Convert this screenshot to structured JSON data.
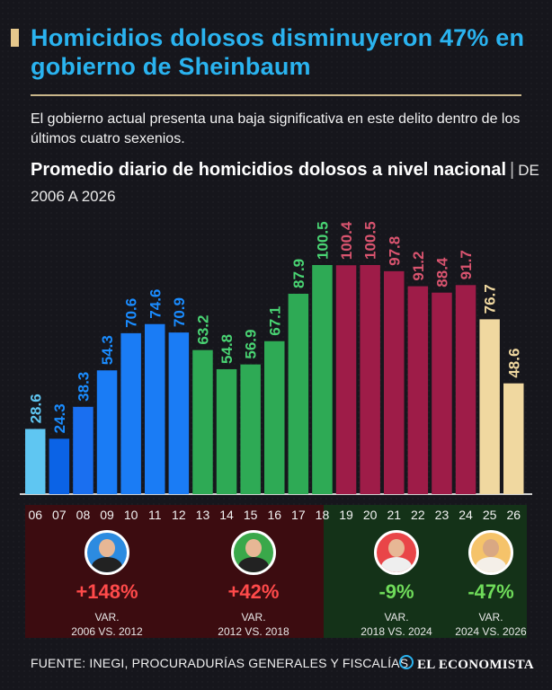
{
  "header": {
    "title": "Homicidios dolosos disminuyeron 47% en gobierno de Sheinbaum",
    "subtitle": "El gobierno actual presenta una baja significativa en este delito dentro de los últimos cuatro sexenios.",
    "chart_title": "Promedio diario de homicidios dolosos a nivel nacional",
    "chart_title_range": "DE 2006 A 2026"
  },
  "chart_data": {
    "type": "bar",
    "title": "Promedio diario de homicidios dolosos a nivel nacional",
    "subtitle": "DE 2006 A 2026",
    "categories": [
      "06",
      "07",
      "08",
      "09",
      "10",
      "11",
      "12",
      "13",
      "14",
      "15",
      "16",
      "17",
      "18",
      "19",
      "20",
      "21",
      "22",
      "23",
      "24",
      "25",
      "26"
    ],
    "values": [
      28.6,
      24.3,
      38.3,
      54.3,
      70.6,
      74.6,
      70.9,
      63.2,
      54.8,
      56.9,
      67.1,
      87.9,
      100.5,
      100.4,
      100.5,
      97.8,
      91.2,
      88.4,
      91.7,
      76.7,
      48.6
    ],
    "value_labels": [
      "28.6",
      "24.3",
      "38.3",
      "54.3",
      "70.6",
      "74.6",
      "70.9",
      "63.2",
      "54.8",
      "56.9",
      "67.1",
      "87.9",
      "100.5",
      "100.4",
      "100.5",
      "97.8",
      "91.2",
      "88.4",
      "91.7",
      "76.7",
      "48.6"
    ],
    "bar_colors": [
      "#5fc6f2",
      "#0b63e6",
      "#1a6ff0",
      "#1a7cf5",
      "#1a7cf5",
      "#1a7cf5",
      "#1a7cf5",
      "#2eaa55",
      "#2eaa55",
      "#2eaa55",
      "#2eaa55",
      "#2eaa55",
      "#2eaa55",
      "#9e1c48",
      "#9e1c48",
      "#9e1c48",
      "#9e1c48",
      "#9e1c48",
      "#9e1c48",
      "#f0d8a0",
      "#f0d8a0"
    ],
    "label_colors": [
      "#5fc6f2",
      "#1a8cff",
      "#1a8cff",
      "#1a8cff",
      "#1a8cff",
      "#1a8cff",
      "#1a8cff",
      "#49d473",
      "#49d473",
      "#49d473",
      "#49d473",
      "#49d473",
      "#49d473",
      "#d9546f",
      "#d9546f",
      "#d9546f",
      "#d9546f",
      "#d9546f",
      "#d9546f",
      "#f0d8a0",
      "#f0d8a0"
    ],
    "ylim": [
      0,
      100.5
    ],
    "grid": false
  },
  "comparisons": [
    {
      "pct": "+148%",
      "label": "VAR.",
      "range": "2006 VS. 2012",
      "color": "#ff4a4a"
    },
    {
      "pct": "+42%",
      "label": "VAR.",
      "range": "2012 VS. 2018",
      "color": "#ff4a4a"
    },
    {
      "pct": "-9%",
      "label": "VAR.",
      "range": "2018 VS. 2024",
      "color": "#6fdc5a"
    },
    {
      "pct": "-47%",
      "label": "VAR.",
      "range": "2024 VS. 2026",
      "color": "#6fdc5a"
    }
  ],
  "footer": {
    "source": "FUENTE: INEGI, PROCURADURÍAS GENERALES Y FISCALÍAS",
    "logo": "EL ECONOMISTA"
  }
}
